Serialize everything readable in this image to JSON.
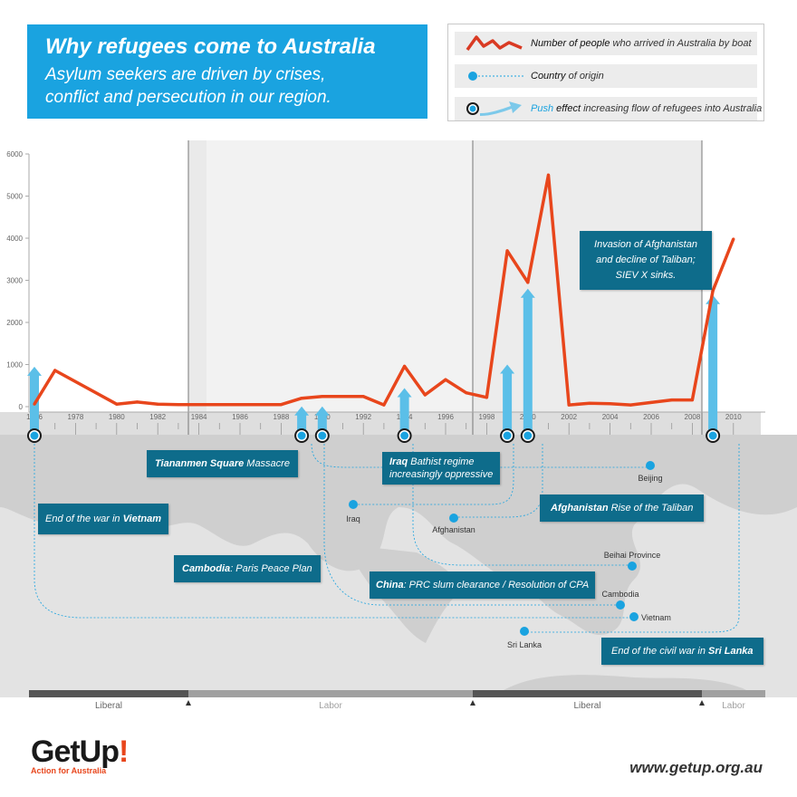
{
  "header": {
    "title": "Why refugees come to Australia",
    "subtitle_line1": "Asylum seekers are driven by crises,",
    "subtitle_line2": "conflict and persecution in our region."
  },
  "legend": {
    "arrivals": {
      "highlight": "Number of people",
      "rest": " who arrived in Australia by boat"
    },
    "country": {
      "highlight": "Country",
      "rest": " of origin"
    },
    "push": {
      "highlight1": "Push",
      "highlight2": " effect",
      "rest": " increasing flow of refugees into Australia"
    }
  },
  "colors": {
    "line": "#e8461c",
    "accent": "#1aa3e0",
    "callout": "#0e6c8b",
    "arrow": "#5bbfe8"
  },
  "chart_data": {
    "type": "line",
    "title": "Why refugees come to Australia",
    "series": [
      {
        "name": "Number of people who arrived in Australia by boat",
        "x": [
          1976,
          1977,
          1980,
          1981,
          1982,
          1983,
          1984,
          1985,
          1986,
          1987,
          1988,
          1989,
          1990,
          1991,
          1992,
          1993,
          1994,
          1995,
          1996,
          1997,
          1998,
          1999,
          2000,
          2001,
          2002,
          2003,
          2004,
          2005,
          2006,
          2007,
          2008,
          2009,
          2010
        ],
        "values": [
          60,
          860,
          60,
          110,
          60,
          50,
          50,
          50,
          50,
          50,
          50,
          200,
          240,
          240,
          240,
          40,
          960,
          280,
          640,
          330,
          220,
          3700,
          2950,
          5500,
          40,
          80,
          70,
          40,
          100,
          160,
          160,
          2750,
          3980
        ]
      }
    ],
    "push_events": [
      {
        "year": 1976,
        "value": 950
      },
      {
        "year": 1989,
        "value": 5
      },
      {
        "year": 1990,
        "value": 5
      },
      {
        "year": 1994,
        "value": 440
      },
      {
        "year": 1999,
        "value": 1000
      },
      {
        "year": 2000,
        "value": 2800
      },
      {
        "year": 2009,
        "value": 2650
      }
    ],
    "xlim": [
      1975.7,
      2010.3
    ],
    "ylim": [
      0,
      6000
    ],
    "yticks": [
      0,
      1000,
      2000,
      3000,
      4000,
      5000,
      6000
    ],
    "xticks": [
      1976,
      1978,
      1980,
      1982,
      1984,
      1986,
      1988,
      1990,
      1992,
      1994,
      1996,
      1998,
      2000,
      2002,
      2004,
      2006,
      2008,
      2010
    ],
    "grid": false,
    "legend": "top-right"
  },
  "events": [
    {
      "bold": "",
      "pre": "End of the war in ",
      "post_bold": "Vietnam"
    },
    {
      "bold": "Tiananmen Square",
      "rest": " Massacre"
    },
    {
      "bold": "Cambodia",
      "rest": ": Paris Peace Plan"
    },
    {
      "bold": "Iraq",
      "rest": " Bathist regime",
      "line2": "increasingly oppressive"
    },
    {
      "bold": "China",
      "rest": ": PRC slum clearance / Resolution of CPA"
    },
    {
      "bold": "Afghanistan",
      "rest": " Rise of the Taliban"
    },
    {
      "line1": "Invasion of Afghanistan",
      "line2": "and decline of Taliban;",
      "line3": "SIEV X sinks."
    },
    {
      "pre": "End of the civil war in ",
      "post_bold": "Sri Lanka"
    }
  ],
  "countries": [
    "Beijing",
    "Iraq",
    "Afghanistan",
    "Beihai Province",
    "Cambodia",
    "Vietnam",
    "Sri Lanka"
  ],
  "governments": [
    {
      "label": "Liberal"
    },
    {
      "label": "Labor"
    },
    {
      "label": "Liberal"
    },
    {
      "label": "Labor"
    }
  ],
  "footer": {
    "url": "www.getup.org.au",
    "logo_main": "GetUp",
    "logo_mark": "!",
    "logo_sub": "Action for Australia"
  }
}
